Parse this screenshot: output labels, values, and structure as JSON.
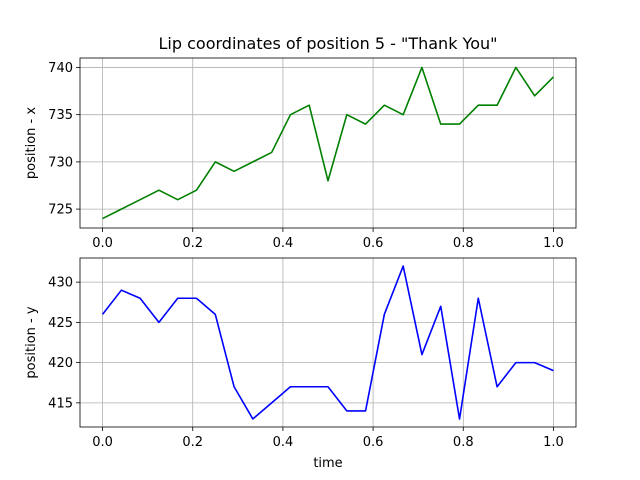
{
  "chart_data": {
    "type": "line",
    "title": "Lip coordinates of position 5 - \"Thank You\"",
    "x": [
      0.0,
      0.0417,
      0.0833,
      0.125,
      0.1667,
      0.2083,
      0.25,
      0.2917,
      0.3333,
      0.375,
      0.4167,
      0.4583,
      0.5,
      0.5417,
      0.5833,
      0.625,
      0.6667,
      0.7083,
      0.75,
      0.7917,
      0.8333,
      0.875,
      0.9167,
      0.9583,
      1.0
    ],
    "panels": [
      {
        "ylabel": "position - x",
        "xlabel": "",
        "color": "#008000",
        "ylim": [
          723,
          741
        ],
        "yticks": [
          725,
          730,
          735,
          740
        ],
        "values": [
          724,
          725,
          726,
          727,
          726,
          727,
          730,
          729,
          730,
          731,
          735,
          736,
          728,
          735,
          734,
          736,
          735,
          740,
          734,
          734,
          736,
          736,
          740,
          737,
          739
        ]
      },
      {
        "ylabel": "position - y",
        "xlabel": "time",
        "color": "#0000ff",
        "ylim": [
          412,
          433
        ],
        "yticks": [
          415,
          420,
          425,
          430
        ],
        "values": [
          426,
          429,
          428,
          425,
          428,
          428,
          426,
          417,
          413,
          415,
          417,
          417,
          417,
          414,
          414,
          426,
          432,
          421,
          427,
          413,
          428,
          417,
          420,
          420,
          419
        ]
      }
    ],
    "xlim": [
      -0.05,
      1.05
    ],
    "xticks": [
      0.0,
      0.2,
      0.4,
      0.6,
      0.8,
      1.0
    ],
    "grid": true
  }
}
